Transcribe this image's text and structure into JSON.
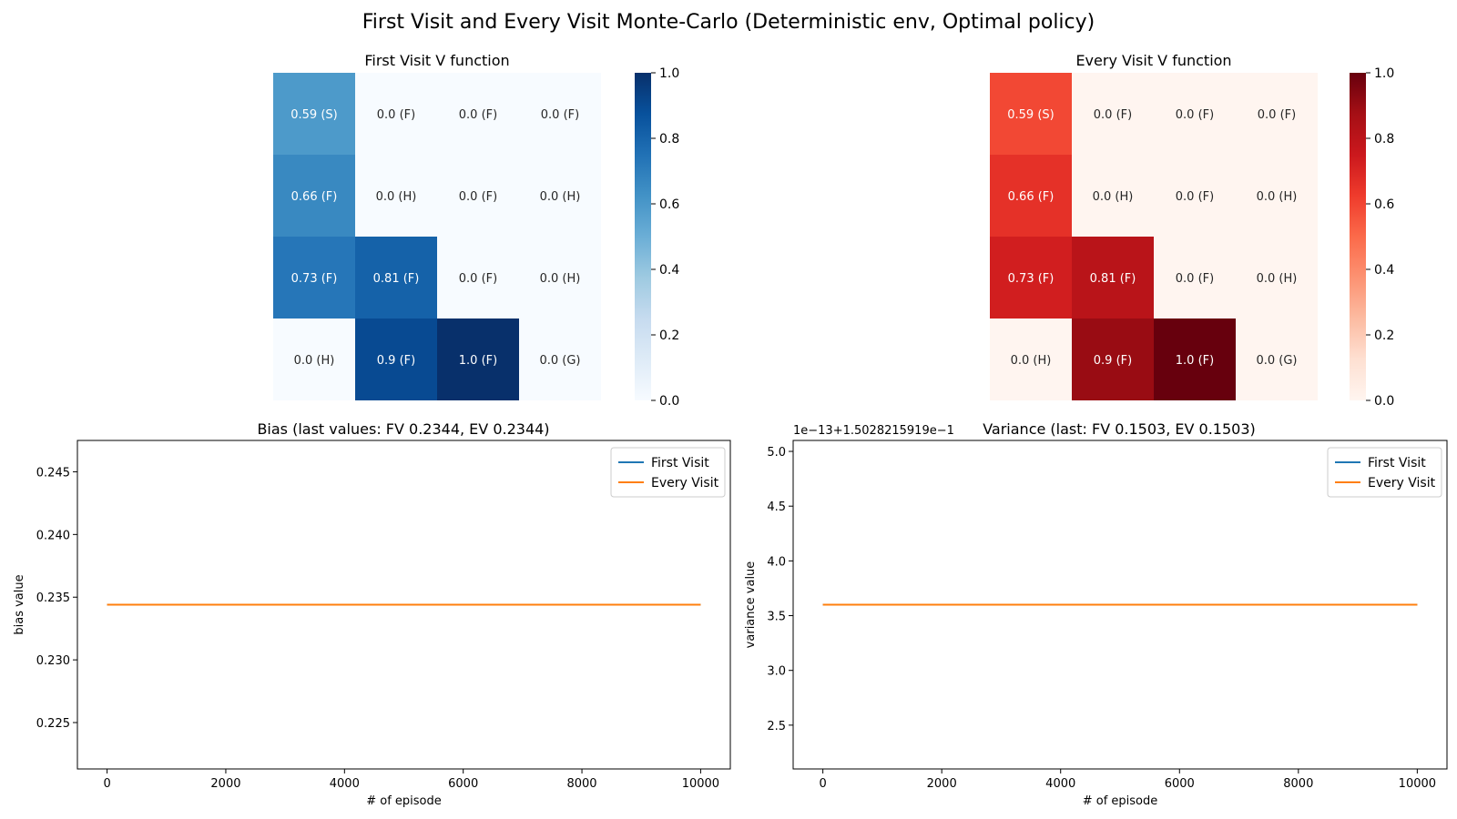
{
  "figure_title": "First Visit and Every Visit Monte-Carlo (Deterministic env, Optimal policy)",
  "chart_data": [
    {
      "type": "heatmap",
      "title": "First Visit V function",
      "colormap": "Blues",
      "colors": [
        "#f7fbff",
        "#deebf7",
        "#c6dbef",
        "#9ecae1",
        "#6baed6",
        "#4292c6",
        "#2171b5",
        "#08519c",
        "#08306b"
      ],
      "vmin": 0.0,
      "vmax": 1.0,
      "colorbar_ticks": [
        "0.0",
        "0.2",
        "0.4",
        "0.6",
        "0.8",
        "1.0"
      ],
      "values": [
        [
          0.59,
          0.0,
          0.0,
          0.0
        ],
        [
          0.66,
          0.0,
          0.0,
          0.0
        ],
        [
          0.73,
          0.81,
          0.0,
          0.0
        ],
        [
          0.0,
          0.9,
          1.0,
          0.0
        ]
      ],
      "labels": [
        [
          "0.59 (S)",
          "0.0 (F)",
          "0.0 (F)",
          "0.0 (F)"
        ],
        [
          "0.66 (F)",
          "0.0 (H)",
          "0.0 (F)",
          "0.0 (H)"
        ],
        [
          "0.73 (F)",
          "0.81 (F)",
          "0.0 (F)",
          "0.0 (H)"
        ],
        [
          "0.0 (H)",
          "0.9 (F)",
          "1.0 (F)",
          "0.0 (G)"
        ]
      ]
    },
    {
      "type": "heatmap",
      "title": "Every Visit V function",
      "colormap": "Reds",
      "colors": [
        "#fff5f0",
        "#fee0d2",
        "#fcbba1",
        "#fc9272",
        "#fb6a4a",
        "#ef3b2c",
        "#cb181d",
        "#a50f15",
        "#67000d"
      ],
      "vmin": 0.0,
      "vmax": 1.0,
      "colorbar_ticks": [
        "0.0",
        "0.2",
        "0.4",
        "0.6",
        "0.8",
        "1.0"
      ],
      "values": [
        [
          0.59,
          0.0,
          0.0,
          0.0
        ],
        [
          0.66,
          0.0,
          0.0,
          0.0
        ],
        [
          0.73,
          0.81,
          0.0,
          0.0
        ],
        [
          0.0,
          0.9,
          1.0,
          0.0
        ]
      ],
      "labels": [
        [
          "0.59 (S)",
          "0.0 (F)",
          "0.0 (F)",
          "0.0 (F)"
        ],
        [
          "0.66 (F)",
          "0.0 (H)",
          "0.0 (F)",
          "0.0 (H)"
        ],
        [
          "0.73 (F)",
          "0.81 (F)",
          "0.0 (F)",
          "0.0 (H)"
        ],
        [
          "0.0 (H)",
          "0.9 (F)",
          "1.0 (F)",
          "0.0 (G)"
        ]
      ]
    },
    {
      "type": "line",
      "title": "Bias (last values: FV 0.2344, EV 0.2344)",
      "xlabel": "# of episode",
      "ylabel": "bias value",
      "xlim": [
        -500,
        10500
      ],
      "ylim": [
        0.2213,
        0.2475
      ],
      "xticks": [
        0,
        2000,
        4000,
        6000,
        8000,
        10000
      ],
      "yticks": [
        0.225,
        0.23,
        0.235,
        0.24,
        0.245
      ],
      "ytick_labels": [
        "0.225",
        "0.230",
        "0.235",
        "0.240",
        "0.245"
      ],
      "legend": "top-right",
      "series": [
        {
          "name": "First Visit",
          "color": "#1f77b4",
          "x": [
            0,
            10000
          ],
          "y": [
            0.2344,
            0.2344
          ]
        },
        {
          "name": "Every Visit",
          "color": "#ff7f0e",
          "x": [
            0,
            10000
          ],
          "y": [
            0.2344,
            0.2344
          ]
        }
      ]
    },
    {
      "type": "line",
      "title": "Variance (last: FV 0.1503, EV 0.1503)",
      "xlabel": "# of episode",
      "ylabel": "variance value",
      "offset_text": "1e−13+1.5028215919e−1",
      "xlim": [
        -500,
        10500
      ],
      "ylim": [
        2.1,
        5.1
      ],
      "xticks": [
        0,
        2000,
        4000,
        6000,
        8000,
        10000
      ],
      "yticks": [
        2.5,
        3.0,
        3.5,
        4.0,
        4.5,
        5.0
      ],
      "ytick_labels": [
        "2.5",
        "3.0",
        "3.5",
        "4.0",
        "4.5",
        "5.0"
      ],
      "legend": "top-right",
      "series": [
        {
          "name": "First Visit",
          "color": "#1f77b4",
          "x": [
            0,
            10000
          ],
          "y": [
            3.6,
            3.6
          ]
        },
        {
          "name": "Every Visit",
          "color": "#ff7f0e",
          "x": [
            0,
            10000
          ],
          "y": [
            3.6,
            3.6
          ]
        }
      ]
    }
  ]
}
